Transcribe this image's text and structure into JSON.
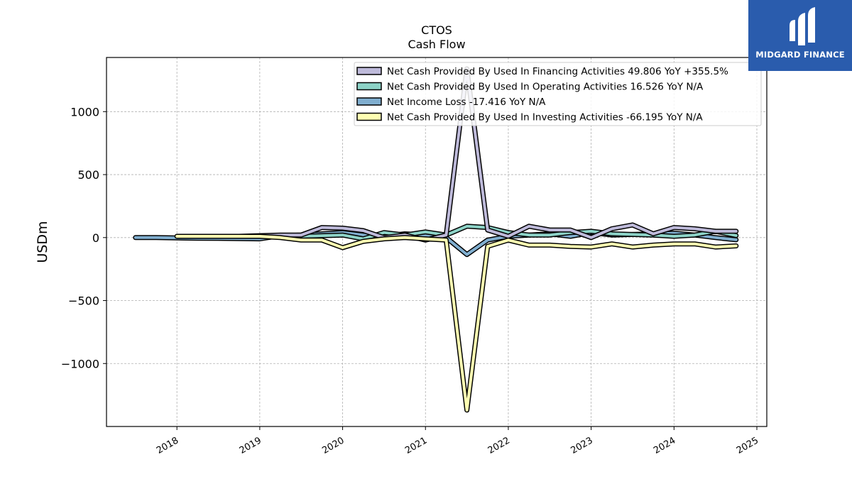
{
  "brand": {
    "name": "MIDGARD FINANCE"
  },
  "chart_data": {
    "type": "line",
    "title": "CTOS",
    "subtitle": "Cash Flow",
    "ylabel": "USDm",
    "xlabel": "",
    "ylim": [
      -1500,
      1430
    ],
    "xlim": [
      2017.15,
      2025.12
    ],
    "yticks": [
      -1000,
      -500,
      0,
      500,
      1000
    ],
    "ytick_labels": [
      "−1000",
      "−500",
      "0",
      "500",
      "1000"
    ],
    "xticks": [
      2018,
      2019,
      2020,
      2021,
      2022,
      2023,
      2024,
      2025
    ],
    "xtick_labels": [
      "2018",
      "2019",
      "2020",
      "2021",
      "2022",
      "2023",
      "2024",
      "2025"
    ],
    "grid": true,
    "legend_position": "top-right",
    "series": [
      {
        "name": "Net Income Loss",
        "legend": "Net Income Loss  -17.416 YoY N/A",
        "color": "#80aecf",
        "x": [
          2017.5,
          2017.75,
          2018.0,
          2018.25,
          2018.5,
          2018.75,
          2019.0,
          2019.25,
          2019.5,
          2019.75,
          2020.0,
          2020.25,
          2020.5,
          2020.75,
          2021.0,
          2021.25,
          2021.5,
          2021.75,
          2022.0,
          2022.25,
          2022.5,
          2022.75,
          2023.0,
          2023.25,
          2023.5,
          2023.75,
          2024.0,
          2024.25,
          2024.5,
          2024.75
        ],
        "values": [
          0,
          0,
          -3,
          -5,
          -6,
          -8,
          -10,
          15,
          20,
          30,
          40,
          20,
          10,
          30,
          20,
          0,
          -135,
          -20,
          10,
          20,
          30,
          10,
          40,
          20,
          25,
          30,
          35,
          20,
          0,
          -17.416
        ]
      },
      {
        "name": "Net Cash Provided By Used In Operating Activities",
        "legend": "Net Cash Provided By Used In Operating Activities  16.526 YoY N/A",
        "color": "#8dd3c7",
        "x": [
          2018.25,
          2018.5,
          2018.75,
          2019.0,
          2019.25,
          2019.5,
          2019.75,
          2020.0,
          2020.25,
          2020.5,
          2020.75,
          2021.0,
          2021.25,
          2021.5,
          2021.75,
          2022.0,
          2022.25,
          2022.5,
          2022.75,
          2023.0,
          2023.25,
          2023.5,
          2023.75,
          2024.0,
          2024.25,
          2024.5,
          2024.75
        ],
        "values": [
          10,
          10,
          10,
          10,
          10,
          10,
          15,
          20,
          -10,
          40,
          20,
          45,
          20,
          90,
          80,
          40,
          20,
          20,
          40,
          50,
          30,
          25,
          20,
          10,
          20,
          50,
          16.526
        ]
      },
      {
        "name": "Net Cash Provided By Used In Financing Activities",
        "legend": "Net Cash Provided By Used In Financing Activities  49.806 YoY +355.5%",
        "color": "#bebada",
        "x": [
          2018.25,
          2018.5,
          2018.75,
          2019.0,
          2019.25,
          2019.5,
          2019.75,
          2020.0,
          2020.25,
          2020.5,
          2020.75,
          2021.0,
          2021.25,
          2021.5,
          2021.75,
          2022.0,
          2022.25,
          2022.5,
          2022.75,
          2023.0,
          2023.25,
          2023.5,
          2023.75,
          2024.0,
          2024.25,
          2024.5,
          2024.75
        ],
        "values": [
          10,
          10,
          10,
          15,
          20,
          20,
          80,
          75,
          55,
          0,
          20,
          -20,
          20,
          1340,
          60,
          10,
          90,
          60,
          60,
          0,
          70,
          100,
          30,
          80,
          70,
          50,
          49.806
        ]
      },
      {
        "name": "Net Cash Provided By Used In Investing Activities",
        "legend": "Net Cash Provided By Used In Investing Activities  -66.195 YoY N/A",
        "color": "#ffffb3",
        "x": [
          2018.0,
          2018.25,
          2018.5,
          2018.75,
          2019.0,
          2019.25,
          2019.5,
          2019.75,
          2020.0,
          2020.25,
          2020.5,
          2020.75,
          2021.0,
          2021.25,
          2021.5,
          2021.75,
          2022.0,
          2022.25,
          2022.5,
          2022.75,
          2023.0,
          2023.25,
          2023.5,
          2023.75,
          2024.0,
          2024.25,
          2024.5,
          2024.75
        ],
        "values": [
          10,
          10,
          10,
          10,
          10,
          0,
          -20,
          -20,
          -80,
          -30,
          -10,
          0,
          -10,
          -20,
          -1370,
          -70,
          -20,
          -60,
          -60,
          -70,
          -75,
          -50,
          -75,
          -60,
          -50,
          -50,
          -75,
          -66.195
        ]
      }
    ],
    "legend_order": [
      2,
      1,
      0,
      3
    ]
  }
}
